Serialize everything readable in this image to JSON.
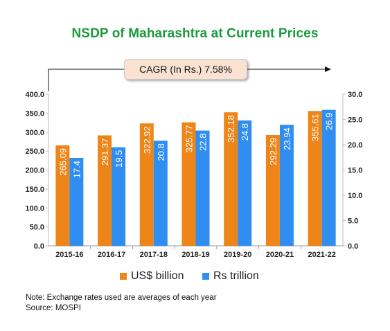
{
  "chart_data": {
    "type": "bar",
    "title": "NSDP of Maharashtra at Current Prices",
    "annotation": "CAGR (In Rs.) 7.58%",
    "categories": [
      "2015-16",
      "2016-17",
      "2017-18",
      "2018-19",
      "2019-20",
      "2020-21",
      "2021-22"
    ],
    "series": [
      {
        "name": "US$ billion",
        "axis": "left",
        "color": "#ee8518",
        "values": [
          265.09,
          291.37,
          322.92,
          325.77,
          352.18,
          292.29,
          355.61
        ],
        "labels": [
          "265.09",
          "291.37",
          "322.92",
          "325.77",
          "352.18",
          "292.29",
          "355.61"
        ]
      },
      {
        "name": "Rs trillion",
        "axis": "right",
        "color": "#2f8ef0",
        "values": [
          17.4,
          19.5,
          20.8,
          22.8,
          24.8,
          23.94,
          26.9
        ],
        "labels": [
          "17.4",
          "19.5",
          "20.8",
          "22.8",
          "24.8",
          "23.94",
          "26.9"
        ]
      }
    ],
    "y_left": {
      "min": 0,
      "max": 400,
      "ticks": [
        "0.0",
        "50.0",
        "100.0",
        "150.0",
        "200.0",
        "250.0",
        "300.0",
        "350.0",
        "400.0"
      ]
    },
    "y_right": {
      "min": 0,
      "max": 30,
      "ticks": [
        "0.0",
        "5.0",
        "10.0",
        "15.0",
        "20.0",
        "25.0",
        "30.0"
      ]
    },
    "grid": false,
    "legend": "bottom"
  },
  "notes": {
    "line1": "Note: Exchange rates used are averages of each year",
    "line2": "Source: MOSPI"
  }
}
